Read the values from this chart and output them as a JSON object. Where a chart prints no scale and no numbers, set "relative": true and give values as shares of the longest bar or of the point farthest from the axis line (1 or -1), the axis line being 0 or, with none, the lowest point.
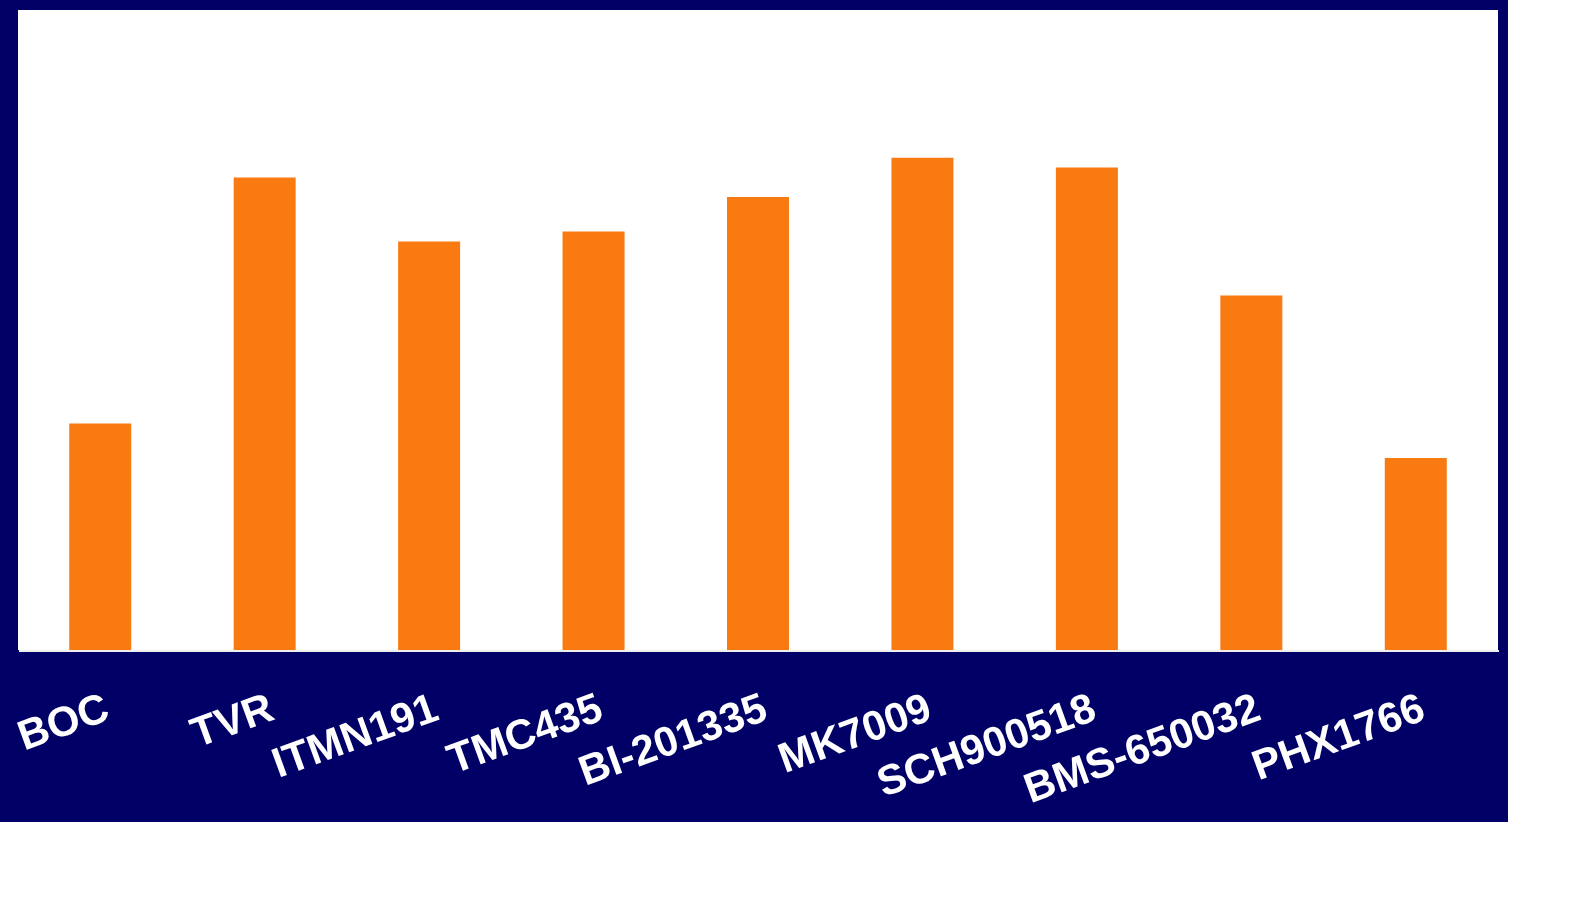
{
  "chart_data": {
    "type": "bar",
    "relative": true,
    "categories": [
      "BOC",
      "TVR",
      "ITMN191",
      "TMC435",
      "BI-201335",
      "MK7009",
      "SCH900518",
      "BMS-650032",
      "PHX1766"
    ],
    "values": [
      0.46,
      0.96,
      0.83,
      0.85,
      0.92,
      1,
      0.98,
      0.72,
      0.39
    ],
    "color": "#fa7a12",
    "grid": false
  }
}
